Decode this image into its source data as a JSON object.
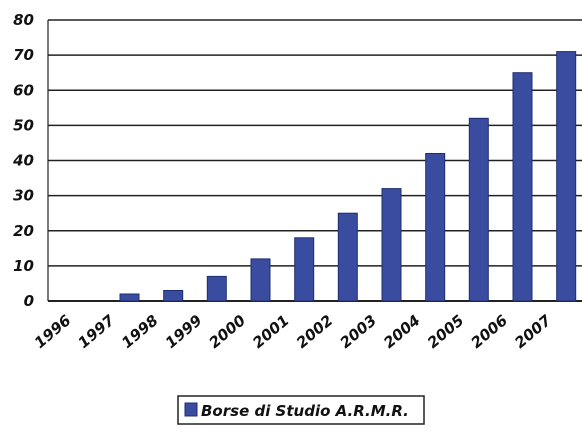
{
  "chart_data": {
    "type": "bar",
    "categories": [
      "1996",
      "1997",
      "1998",
      "1999",
      "2000",
      "2001",
      "2002",
      "2003",
      "2004",
      "2005",
      "2006",
      "2007"
    ],
    "series": [
      {
        "name": "Borse di Studio A.R.M.R.",
        "values": [
          0,
          2,
          3,
          7,
          12,
          18,
          25,
          32,
          42,
          52,
          65,
          71
        ]
      }
    ],
    "yticks": [
      "0",
      "10",
      "20",
      "30",
      "40",
      "50",
      "60",
      "70",
      "80"
    ],
    "ylim": [
      0,
      80
    ],
    "grid": true,
    "legend_position": "bottom",
    "colors": {
      "bar": "#3a4ca0",
      "bar_edge": "#1f2d6e",
      "grid": "#222222"
    }
  }
}
